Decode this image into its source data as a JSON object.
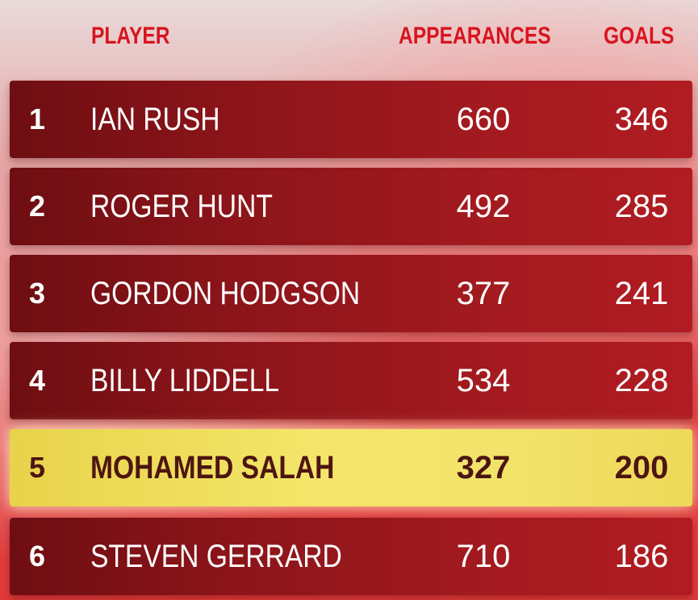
{
  "table": {
    "headers": {
      "player": "PLAYER",
      "appearances": "APPEARANCES",
      "goals": "GOALS"
    },
    "rows": [
      {
        "rank": "1",
        "name": "IAN RUSH",
        "appearances": "660",
        "goals": "346"
      },
      {
        "rank": "2",
        "name": "ROGER HUNT",
        "appearances": "492",
        "goals": "285"
      },
      {
        "rank": "3",
        "name": "GORDON HODGSON",
        "appearances": "377",
        "goals": "241"
      },
      {
        "rank": "4",
        "name": "BILLY LIDDELL",
        "appearances": "534",
        "goals": "228"
      },
      {
        "rank": "5",
        "name": "MOHAMED SALAH",
        "appearances": "327",
        "goals": "200"
      },
      {
        "rank": "6",
        "name": "STEVEN GERRARD",
        "appearances": "710",
        "goals": "186"
      }
    ]
  },
  "colors": {
    "header": "#d8141e",
    "row": "#8d151a",
    "highlight": "#f4e66a",
    "highlight_text": "#4d1512"
  }
}
